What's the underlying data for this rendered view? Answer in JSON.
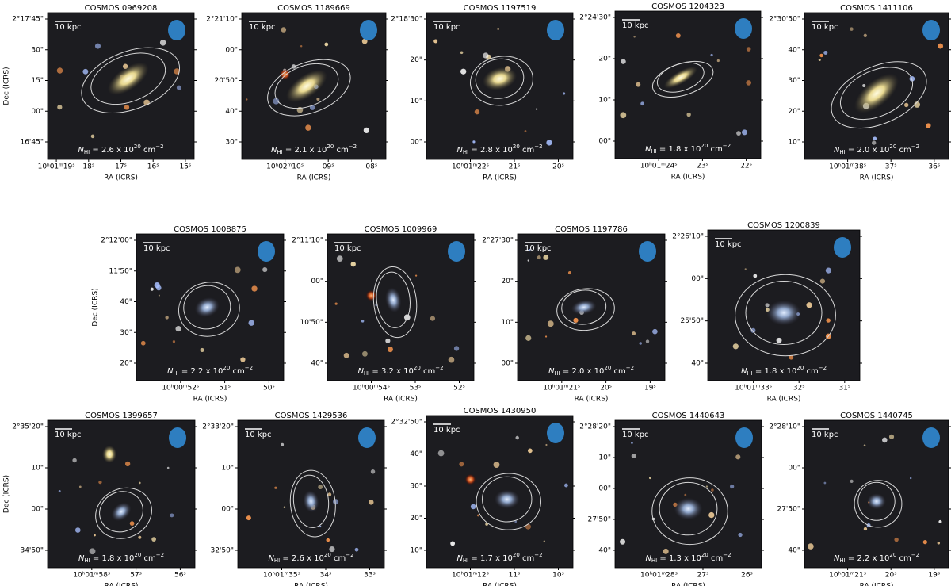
{
  "figure": {
    "panels": [
      {
        "title": "COSMOS 0969208",
        "ylabel": "Dec (ICRS)",
        "xlabel": "RA (ICRS)",
        "scale_bar": "10 kpc",
        "yticks": [
          "2°17'45\"",
          "30\"",
          "15\"",
          "00\"",
          "16'45\""
        ],
        "xticks": [
          "10ʰ01ᵐ19ˢ",
          "18ˢ",
          "17ˢ",
          "16ˢ",
          "15ˢ"
        ],
        "nhi": {
          "symbol": "N",
          "sub": "HI",
          "eq": " = 2.6 x 10",
          "exp": "20",
          "unit": " cm",
          "unit_exp": "−2"
        }
      },
      {
        "title": "COSMOS 1189669",
        "xlabel": "RA (ICRS)",
        "scale_bar": "10 kpc",
        "yticks": [
          "2°21'10\"",
          "00\"",
          "20'50\"",
          "40\"",
          "30\""
        ],
        "xticks": [
          "10ʰ02ᵐ10ˢ",
          "09ˢ",
          "08ˢ"
        ],
        "nhi": {
          "symbol": "N",
          "sub": "HI",
          "eq": " = 2.1 x 10",
          "exp": "20",
          "unit": " cm",
          "unit_exp": "−2"
        }
      },
      {
        "title": "COSMOS 1197519",
        "xlabel": "RA (ICRS)",
        "scale_bar": "10 kpc",
        "yticks": [
          "2°18'30\"",
          "20\"",
          "10\"",
          "00\""
        ],
        "xticks": [
          "10ʰ01ᵐ22ˢ",
          "21ˢ",
          "20ˢ"
        ],
        "nhi": {
          "symbol": "N",
          "sub": "HI",
          "eq": " = 2.8 x 10",
          "exp": "20",
          "unit": " cm",
          "unit_exp": "−2"
        }
      },
      {
        "title": "COSMOS 1204323",
        "xlabel": "RA (ICRS)",
        "scale_bar": "10 kpc",
        "yticks": [
          "2°24'30\"",
          "20\"",
          "10\"",
          "00\""
        ],
        "xticks": [
          "10ʰ01ᵐ24ˢ",
          "23ˢ",
          "22ˢ"
        ],
        "nhi": {
          "symbol": "N",
          "sub": "HI",
          "eq": " = 1.8 x 10",
          "exp": "20",
          "unit": " cm",
          "unit_exp": "−2"
        }
      },
      {
        "title": "COSMOS 1411106",
        "xlabel": "RA (ICRS)",
        "scale_bar": "10 kpc",
        "yticks": [
          "2°30'50\"",
          "40\"",
          "30\"",
          "20\"",
          "10\""
        ],
        "xticks": [
          "10ʰ01ᵐ38ˢ",
          "37ˢ",
          "36ˢ"
        ],
        "nhi": {
          "symbol": "N",
          "sub": "HI",
          "eq": " = 2.0 x 10",
          "exp": "20",
          "unit": " cm",
          "unit_exp": "−2"
        }
      },
      {
        "title": "COSMOS 1008875",
        "ylabel": "Dec (ICRS)",
        "xlabel": "RA (ICRS)",
        "scale_bar": "10 kpc",
        "yticks": [
          "2°12'00\"",
          "11'50\"",
          "40\"",
          "30\"",
          "20\""
        ],
        "xticks": [
          "10ʰ00ᵐ52ˢ",
          "51ˢ",
          "50ˢ"
        ],
        "nhi": {
          "symbol": "N",
          "sub": "HI",
          "eq": " = 2.2 x 10",
          "exp": "20",
          "unit": " cm",
          "unit_exp": "−2"
        }
      },
      {
        "title": "COSMOS 1009969",
        "xlabel": "RA (ICRS)",
        "scale_bar": "10 kpc",
        "yticks": [
          "2°11'10\"",
          "00\"",
          "10'50\"",
          "40\""
        ],
        "xticks": [
          "10ʰ00ᵐ54ˢ",
          "53ˢ",
          "52ˢ"
        ],
        "nhi": {
          "symbol": "N",
          "sub": "HI",
          "eq": " = 3.2 x 10",
          "exp": "20",
          "unit": " cm",
          "unit_exp": "−2"
        }
      },
      {
        "title": "COSMOS 1197786",
        "xlabel": "RA (ICRS)",
        "scale_bar": "10 kpc",
        "yticks": [
          "2°27'30\"",
          "20\"",
          "10\"",
          "00\""
        ],
        "xticks": [
          "10ʰ01ᵐ21ˢ",
          "20ˢ",
          "19ˢ"
        ],
        "nhi": {
          "symbol": "N",
          "sub": "HI",
          "eq": " = 2.0 x 10",
          "exp": "20",
          "unit": " cm",
          "unit_exp": "−2"
        }
      },
      {
        "title": "COSMOS 1200839",
        "xlabel": "RA (ICRS)",
        "scale_bar": "10 kpc",
        "yticks": [
          "2°26'10\"",
          "00\"",
          "25'50\"",
          "40\""
        ],
        "xticks": [
          "10ʰ01ᵐ33ˢ",
          "32ˢ",
          "31ˢ"
        ],
        "nhi": {
          "symbol": "N",
          "sub": "HI",
          "eq": " = 1.8 x 10",
          "exp": "20",
          "unit": " cm",
          "unit_exp": "−2"
        }
      },
      {
        "title": "COSMOS 1399657",
        "ylabel": "Dec (ICRS)",
        "xlabel": "RA (ICRS)",
        "scale_bar": "10 kpc",
        "yticks": [
          "2°35'20\"",
          "10\"",
          "00\"",
          "34'50\""
        ],
        "xticks": [
          "10ʰ01ᵐ58ˢ",
          "57ˢ",
          "56ˢ"
        ],
        "nhi": {
          "symbol": "N",
          "sub": "HI",
          "eq": " = 1.8 x 10",
          "exp": "20",
          "unit": " cm",
          "unit_exp": "−2"
        }
      },
      {
        "title": "COSMOS 1429536",
        "xlabel": "RA (ICRS)",
        "scale_bar": "10 kpc",
        "yticks": [
          "2°33'20\"",
          "10\"",
          "00\"",
          "32'50\""
        ],
        "xticks": [
          "10ʰ01ᵐ35ˢ",
          "34ˢ",
          "33ˢ"
        ],
        "nhi": {
          "symbol": "N",
          "sub": "HI",
          "eq": " = 2.6 x 10",
          "exp": "20",
          "unit": " cm",
          "unit_exp": "−2"
        }
      },
      {
        "title": "COSMOS 1430950",
        "xlabel": "RA (ICRS)",
        "scale_bar": "10 kpc",
        "yticks": [
          "2°32'50\"",
          "40\"",
          "30\"",
          "20\"",
          "10\""
        ],
        "xticks": [
          "10ʰ01ᵐ12ˢ",
          "11ˢ",
          "10ˢ"
        ],
        "nhi": {
          "symbol": "N",
          "sub": "HI",
          "eq": " = 1.7 x 10",
          "exp": "20",
          "unit": " cm",
          "unit_exp": "−2"
        }
      },
      {
        "title": "COSMOS 1440643",
        "xlabel": "RA (ICRS)",
        "scale_bar": "10 kpc",
        "yticks": [
          "2°28'20\"",
          "10\"",
          "00\"",
          "27'50\"",
          "40\""
        ],
        "xticks": [
          "10ʰ01ᵐ28ˢ",
          "27ˢ",
          "26ˢ"
        ],
        "nhi": {
          "symbol": "N",
          "sub": "HI",
          "eq": " = 1.3 x 10",
          "exp": "20",
          "unit": " cm",
          "unit_exp": "−2"
        }
      },
      {
        "title": "COSMOS 1440745",
        "xlabel": "RA (ICRS)",
        "scale_bar": "10 kpc",
        "yticks": [
          "2°28'10\"",
          "00\"",
          "27'50\"",
          "40\""
        ],
        "xticks": [
          "10ʰ01ᵐ21ˢ",
          "20ˢ",
          "19ˢ"
        ],
        "nhi": {
          "symbol": "N",
          "sub": "HI",
          "eq": " = 2.2 x 10",
          "exp": "20",
          "unit": " cm",
          "unit_exp": "−2"
        }
      }
    ]
  }
}
